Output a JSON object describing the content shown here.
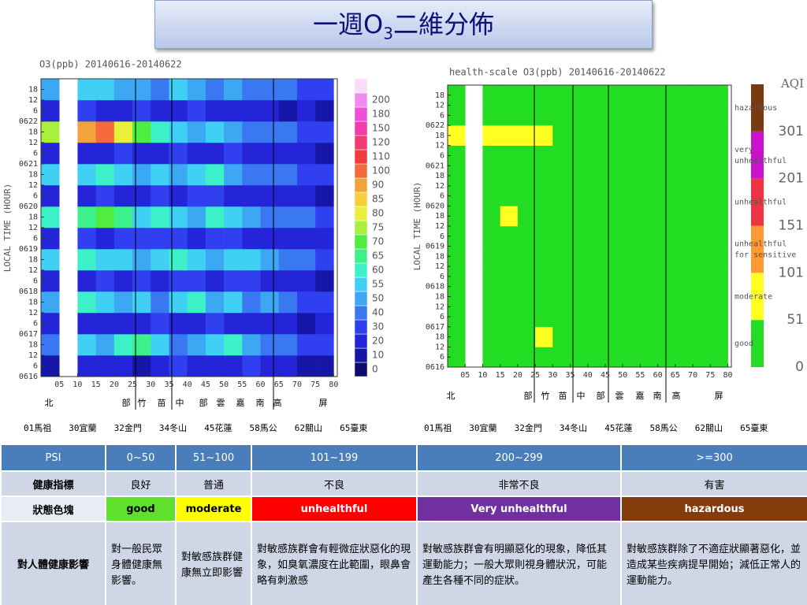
{
  "title_parts": [
    "一週O",
    "3",
    "二維分佈"
  ],
  "chart_data": [
    {
      "type": "heatmap",
      "title": "O3(ppb) 20140616-20140622",
      "y_label": "LOCAL TIME (HOUR)",
      "xbins": [
        0,
        5,
        10,
        15,
        20,
        25,
        30,
        35,
        40,
        45,
        50,
        55,
        60,
        65,
        70,
        75,
        80
      ],
      "ybins": [
        0,
        12,
        24,
        36,
        48,
        60,
        72,
        84,
        96,
        108,
        120,
        132,
        144,
        156,
        168
      ],
      "xlim": [
        0,
        81
      ],
      "ylim": [
        0,
        168
      ],
      "xticks": [
        {
          "value": 5,
          "label": "05"
        },
        10,
        15,
        20,
        25,
        30,
        35,
        40,
        45,
        50,
        55,
        60,
        65,
        70,
        75,
        80
      ],
      "yticks": [
        {
          "value": 0,
          "label": "0616"
        },
        6,
        12,
        18,
        {
          "value": 24,
          "label": "0617"
        },
        {
          "value": 30,
          "label": "6"
        },
        {
          "value": 36,
          "label": "12"
        },
        {
          "value": 42,
          "label": "18"
        },
        {
          "value": 48,
          "label": "0618"
        },
        {
          "value": 54,
          "label": "6"
        },
        {
          "value": 60,
          "label": "12"
        },
        {
          "value": 66,
          "label": "18"
        },
        {
          "value": 72,
          "label": "0619"
        },
        {
          "value": 78,
          "label": "6"
        },
        {
          "value": 84,
          "label": "12"
        },
        {
          "value": 90,
          "label": "18"
        },
        {
          "value": 96,
          "label": "0620"
        },
        {
          "value": 102,
          "label": "6"
        },
        {
          "value": 108,
          "label": "12"
        },
        {
          "value": 114,
          "label": "18"
        },
        {
          "value": 120,
          "label": "0621"
        },
        {
          "value": 126,
          "label": "6"
        },
        {
          "value": 132,
          "label": "12"
        },
        {
          "value": 138,
          "label": "18"
        },
        {
          "value": 144,
          "label": "0622"
        },
        {
          "value": 150,
          "label": "6"
        },
        {
          "value": 156,
          "label": "12"
        },
        {
          "value": 162,
          "label": "18"
        }
      ],
      "values": [
        [
          15,
          null,
          20,
          25,
          20,
          18,
          22,
          30,
          25,
          22,
          25,
          30,
          28,
          20,
          18,
          15
        ],
        [
          45,
          null,
          55,
          50,
          60,
          65,
          55,
          45,
          50,
          55,
          60,
          50,
          45,
          40,
          35,
          30
        ],
        [
          20,
          null,
          25,
          22,
          28,
          25,
          30,
          25,
          22,
          30,
          28,
          25,
          22,
          20,
          18,
          20
        ],
        [
          50,
          null,
          60,
          55,
          50,
          55,
          45,
          55,
          60,
          50,
          55,
          45,
          50,
          40,
          35,
          30
        ],
        [
          22,
          null,
          28,
          30,
          25,
          30,
          28,
          32,
          30,
          28,
          32,
          30,
          25,
          22,
          20,
          18
        ],
        [
          55,
          null,
          60,
          55,
          58,
          50,
          55,
          60,
          55,
          50,
          58,
          55,
          50,
          45,
          40,
          35
        ],
        [
          25,
          null,
          30,
          28,
          32,
          30,
          35,
          30,
          28,
          32,
          30,
          28,
          25,
          22,
          20,
          22
        ],
        [
          60,
          null,
          65,
          70,
          65,
          55,
          60,
          55,
          50,
          60,
          55,
          50,
          48,
          45,
          40,
          38
        ],
        [
          20,
          null,
          25,
          30,
          28,
          25,
          30,
          28,
          32,
          30,
          28,
          25,
          22,
          20,
          22,
          18
        ],
        [
          55,
          null,
          58,
          60,
          55,
          50,
          55,
          50,
          55,
          60,
          52,
          48,
          45,
          42,
          38,
          35
        ],
        [
          22,
          null,
          28,
          25,
          30,
          28,
          25,
          30,
          28,
          25,
          30,
          28,
          25,
          22,
          20,
          18
        ],
        [
          75,
          null,
          90,
          100,
          80,
          70,
          60,
          55,
          50,
          55,
          50,
          48,
          45,
          40,
          38,
          35
        ],
        [
          25,
          null,
          30,
          28,
          25,
          30,
          28,
          25,
          30,
          28,
          25,
          22,
          20,
          18,
          20,
          18
        ],
        [
          50,
          null,
          55,
          58,
          52,
          50,
          48,
          55,
          50,
          45,
          50,
          48,
          45,
          40,
          38,
          35
        ]
      ],
      "colorbar": {
        "levels": [
          0,
          10,
          20,
          30,
          40,
          50,
          55,
          60,
          65,
          70,
          75,
          80,
          85,
          90,
          100,
          110,
          120,
          150,
          180,
          200
        ],
        "colors": [
          "#0c0c6e",
          "#1616a8",
          "#2424d8",
          "#3040f0",
          "#3a78f2",
          "#3ca8f4",
          "#40d0f4",
          "#3cf0c8",
          "#3cf08a",
          "#50ec40",
          "#a8f03c",
          "#e8f03c",
          "#f4d03c",
          "#f4a23c",
          "#f46a3c",
          "#f03c3c",
          "#f03c70",
          "#f23caa",
          "#f050d8",
          "#f08cf0",
          "#fadcf8"
        ]
      },
      "region_labels": [
        "北",
        "部",
        "竹",
        "苗",
        "中",
        "部",
        "雲",
        "嘉",
        "南",
        "高",
        "屏"
      ],
      "station_labels": [
        "01馬祖",
        "30宜蘭",
        "32金門",
        "34冬山",
        "45花蓮",
        "58馬公",
        "62關山",
        "65臺東"
      ]
    },
    {
      "type": "heatmap",
      "title": "health-scale O3(ppb) 20140616-20140622",
      "y_label": "LOCAL TIME (HOUR)",
      "xbins": [
        0,
        5,
        10,
        15,
        20,
        25,
        30,
        35,
        40,
        45,
        50,
        55,
        60,
        65,
        70,
        75,
        80
      ],
      "ybins": [
        0,
        12,
        24,
        36,
        48,
        60,
        72,
        84,
        96,
        108,
        120,
        132,
        144,
        156,
        168
      ],
      "xlim": [
        0,
        81
      ],
      "ylim": [
        0,
        168
      ],
      "xticks": [
        {
          "value": 5,
          "label": "05"
        },
        10,
        15,
        20,
        25,
        30,
        35,
        40,
        45,
        50,
        55,
        60,
        65,
        70,
        75,
        80
      ],
      "yticks": [
        {
          "value": 0,
          "label": "0616"
        },
        6,
        12,
        18,
        {
          "value": 24,
          "label": "0617"
        },
        {
          "value": 30,
          "label": "6"
        },
        {
          "value": 36,
          "label": "12"
        },
        {
          "value": 42,
          "label": "18"
        },
        {
          "value": 48,
          "label": "0618"
        },
        {
          "value": 54,
          "label": "6"
        },
        {
          "value": 60,
          "label": "12"
        },
        {
          "value": 66,
          "label": "18"
        },
        {
          "value": 72,
          "label": "0619"
        },
        {
          "value": 78,
          "label": "6"
        },
        {
          "value": 84,
          "label": "12"
        },
        {
          "value": 90,
          "label": "18"
        },
        {
          "value": 96,
          "label": "0620"
        },
        {
          "value": 102,
          "label": "6"
        },
        {
          "value": 108,
          "label": "12"
        },
        {
          "value": 114,
          "label": "18"
        },
        {
          "value": 120,
          "label": "0621"
        },
        {
          "value": 126,
          "label": "6"
        },
        {
          "value": 132,
          "label": "12"
        },
        {
          "value": 138,
          "label": "18"
        },
        {
          "value": 144,
          "label": "0622"
        },
        {
          "value": 150,
          "label": "6"
        },
        {
          "value": 156,
          "label": "12"
        },
        {
          "value": 162,
          "label": "18"
        }
      ],
      "values": [
        [
          15,
          null,
          18,
          20,
          18,
          15,
          18,
          22,
          20,
          18,
          20,
          22,
          20,
          15,
          15,
          12
        ],
        [
          38,
          null,
          42,
          40,
          45,
          55,
          42,
          35,
          40,
          42,
          45,
          40,
          35,
          32,
          28,
          25
        ],
        [
          18,
          null,
          20,
          18,
          22,
          20,
          22,
          20,
          18,
          22,
          20,
          20,
          18,
          15,
          15,
          15
        ],
        [
          40,
          null,
          45,
          42,
          40,
          42,
          38,
          42,
          45,
          40,
          42,
          38,
          40,
          32,
          28,
          25
        ],
        [
          18,
          null,
          22,
          22,
          20,
          22,
          22,
          25,
          22,
          22,
          25,
          22,
          20,
          18,
          15,
          15
        ],
        [
          42,
          null,
          45,
          42,
          44,
          40,
          42,
          45,
          42,
          40,
          44,
          42,
          40,
          35,
          32,
          28
        ],
        [
          20,
          null,
          22,
          22,
          25,
          22,
          25,
          22,
          22,
          25,
          22,
          22,
          20,
          18,
          15,
          18
        ],
        [
          45,
          null,
          48,
          55,
          48,
          42,
          45,
          42,
          40,
          45,
          42,
          40,
          38,
          35,
          32,
          30
        ],
        [
          18,
          null,
          20,
          22,
          22,
          20,
          22,
          22,
          25,
          22,
          22,
          20,
          18,
          15,
          18,
          15
        ],
        [
          42,
          null,
          44,
          45,
          42,
          40,
          42,
          40,
          42,
          45,
          40,
          38,
          35,
          33,
          30,
          28
        ],
        [
          18,
          null,
          22,
          20,
          22,
          22,
          20,
          22,
          22,
          20,
          22,
          22,
          20,
          18,
          15,
          15
        ],
        [
          55,
          null,
          65,
          70,
          60,
          52,
          45,
          42,
          40,
          42,
          40,
          38,
          35,
          32,
          30,
          28
        ],
        [
          20,
          null,
          22,
          22,
          20,
          22,
          22,
          20,
          22,
          22,
          20,
          18,
          15,
          15,
          15,
          15
        ],
        [
          40,
          null,
          42,
          44,
          40,
          40,
          38,
          42,
          40,
          35,
          40,
          38,
          35,
          32,
          30,
          28
        ]
      ],
      "colorbar": {
        "title": "AQI",
        "levels": [
          0,
          51,
          101,
          151,
          201,
          301
        ],
        "colors": [
          "#22dd22",
          "#ffff22",
          "#ff9933",
          "#ee3344",
          "#cc11cc",
          "#7a3a10"
        ],
        "category_labels": [
          [
            "good"
          ],
          [
            "moderate"
          ],
          [
            "unhealthful",
            "for sensitive"
          ],
          [
            "unhealthful"
          ],
          [
            "very",
            "unhealthful"
          ],
          [
            "hazardous"
          ]
        ]
      },
      "region_labels": [
        "北",
        "部",
        "竹",
        "苗",
        "中",
        "部",
        "雲",
        "嘉",
        "南",
        "高",
        "屏"
      ],
      "station_labels": [
        "01馬祖",
        "30宜蘭",
        "32金門",
        "34冬山",
        "45花蓮",
        "58馬公",
        "62關山",
        "65臺東"
      ]
    }
  ],
  "table": {
    "header": [
      "PSI",
      "0~50",
      "51~100",
      "101~199",
      "200~299",
      ">=300"
    ],
    "rows": [
      [
        "健康指標",
        "良好",
        "普通",
        "不良",
        "非常不良",
        "有害"
      ],
      [
        "狀態色塊",
        "good",
        "moderate",
        "unhealthful",
        "Very unhealthful",
        "hazardous"
      ],
      [
        "對人體健康影響",
        "對一般民眾身體健康無影響。",
        "對敏感族群健康無立即影響",
        "對敏感族群會有輕微症狀惡化的現象，如臭氧濃度在此範圍，眼鼻會略有刺激感",
        "對敏感族群會有明顯惡化的現象，降低其運動能力；一般大眾則視身體狀況，可能產生各種不同的症狀。",
        "對敏感族群除了不適症狀顯著惡化，並造成某些疾病提早開始；減低正常人的運動能力。"
      ]
    ],
    "status_colors": [
      "#5fe02c",
      "#ffff00",
      "#ff0000",
      "#7030a0",
      "#843c0c"
    ],
    "status_text_colors": [
      "#000000",
      "#000000",
      "#ffffff",
      "#ffffff",
      "#ffffff"
    ]
  }
}
